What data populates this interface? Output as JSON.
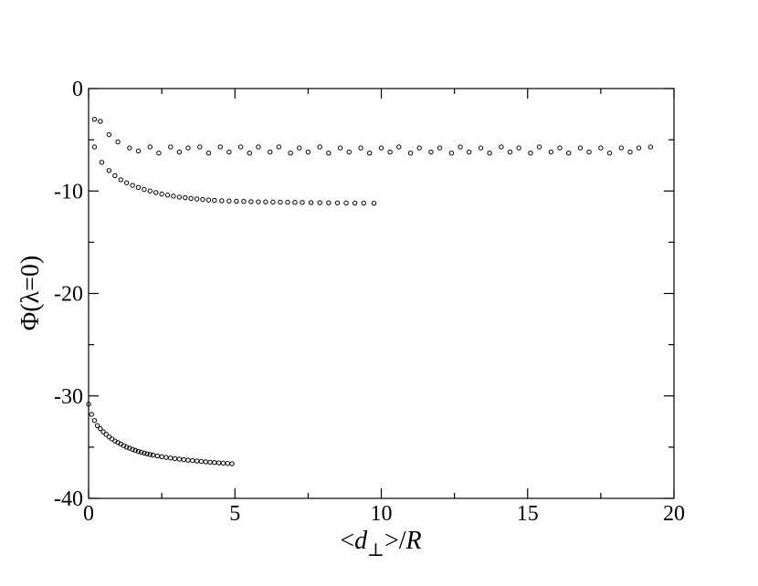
{
  "chart_data": {
    "type": "scatter",
    "title": "",
    "xlabel_parts": {
      "open": "<",
      "var": "d",
      "sub": "⊥",
      "close": ">/",
      "norm": "R"
    },
    "ylabel": "Φ(λ=0)",
    "xlim": [
      0,
      20
    ],
    "ylim": [
      -40,
      0
    ],
    "x_ticks": [
      0,
      5,
      10,
      15,
      20
    ],
    "y_ticks": [
      0,
      -10,
      -20,
      -30,
      -40
    ],
    "x_tick_labels": [
      "0",
      "5",
      "10",
      "15",
      "20"
    ],
    "y_tick_labels": [
      "0",
      "-10",
      "-20",
      "-30",
      "-40"
    ],
    "grid": false,
    "legend": "none",
    "marker_color": "#000000",
    "series": [
      {
        "x": [
          0.2,
          0.4,
          0.7,
          1.0,
          1.4,
          1.7,
          2.1,
          2.4,
          2.8,
          3.1,
          3.4,
          3.8,
          4.1,
          4.5,
          4.8,
          5.2,
          5.5,
          5.8,
          6.2,
          6.5,
          6.9,
          7.2,
          7.5,
          7.9,
          8.2,
          8.6,
          8.9,
          9.3,
          9.6,
          10.0,
          10.3,
          10.6,
          11.0,
          11.3,
          11.7,
          12.0,
          12.4,
          12.7,
          13.0,
          13.4,
          13.7,
          14.1,
          14.4,
          14.7,
          15.1,
          15.4,
          15.8,
          16.1,
          16.4,
          16.8,
          17.1,
          17.5,
          17.8,
          18.2,
          18.5,
          18.8,
          19.2
        ],
        "y": [
          -5.7,
          -3.2,
          -4.5,
          -5.2,
          -5.8,
          -6.1,
          -5.7,
          -6.3,
          -5.7,
          -6.2,
          -5.8,
          -5.7,
          -6.3,
          -5.7,
          -6.2,
          -5.7,
          -6.3,
          -5.7,
          -6.2,
          -5.7,
          -6.3,
          -5.8,
          -6.2,
          -5.7,
          -6.3,
          -5.8,
          -6.2,
          -5.8,
          -6.3,
          -5.8,
          -6.2,
          -5.7,
          -6.3,
          -5.8,
          -6.2,
          -5.8,
          -6.3,
          -5.7,
          -6.2,
          -5.8,
          -6.3,
          -5.7,
          -6.2,
          -5.8,
          -6.3,
          -5.7,
          -6.2,
          -5.8,
          -6.3,
          -5.8,
          -6.2,
          -5.8,
          -6.3,
          -5.8,
          -6.2,
          -5.8,
          -5.7
        ]
      },
      {
        "x": [
          0.2,
          0.45,
          0.7,
          0.9,
          1.1,
          1.3,
          1.5,
          1.7,
          1.9,
          2.1,
          2.3,
          2.5,
          2.7,
          2.9,
          3.1,
          3.3,
          3.5,
          3.7,
          3.9,
          4.1,
          4.3,
          4.55,
          4.8,
          5.05,
          5.3,
          5.55,
          5.8,
          6.05,
          6.3,
          6.55,
          6.8,
          7.05,
          7.3,
          7.6,
          7.9,
          8.2,
          8.5,
          8.8,
          9.1,
          9.4,
          9.75
        ],
        "y": [
          -3.0,
          -7.2,
          -8.0,
          -8.5,
          -8.9,
          -9.2,
          -9.45,
          -9.65,
          -9.85,
          -10.0,
          -10.15,
          -10.3,
          -10.4,
          -10.5,
          -10.6,
          -10.65,
          -10.72,
          -10.78,
          -10.83,
          -10.88,
          -10.92,
          -10.95,
          -10.98,
          -11.0,
          -11.02,
          -11.04,
          -11.06,
          -11.07,
          -11.08,
          -11.09,
          -11.1,
          -11.11,
          -11.12,
          -11.13,
          -11.14,
          -11.15,
          -11.16,
          -11.17,
          -11.18,
          -11.19,
          -11.2
        ]
      },
      {
        "x": [
          0.0,
          0.1,
          0.2,
          0.3,
          0.4,
          0.5,
          0.6,
          0.7,
          0.8,
          0.9,
          1.0,
          1.1,
          1.2,
          1.3,
          1.4,
          1.5,
          1.6,
          1.7,
          1.8,
          1.9,
          2.0,
          2.1,
          2.2,
          2.35,
          2.5,
          2.65,
          2.8,
          2.95,
          3.1,
          3.25,
          3.4,
          3.55,
          3.7,
          3.85,
          4.0,
          4.15,
          4.3,
          4.45,
          4.6,
          4.75,
          4.9
        ],
        "y": [
          -30.8,
          -31.8,
          -32.4,
          -32.9,
          -33.2,
          -33.5,
          -33.75,
          -34.0,
          -34.2,
          -34.4,
          -34.55,
          -34.7,
          -34.85,
          -35.0,
          -35.1,
          -35.22,
          -35.32,
          -35.42,
          -35.5,
          -35.58,
          -35.65,
          -35.72,
          -35.78,
          -35.86,
          -35.93,
          -36.0,
          -36.06,
          -36.12,
          -36.17,
          -36.22,
          -36.27,
          -36.31,
          -36.35,
          -36.39,
          -36.43,
          -36.47,
          -36.5,
          -36.53,
          -36.56,
          -36.59,
          -36.62
        ]
      }
    ]
  }
}
